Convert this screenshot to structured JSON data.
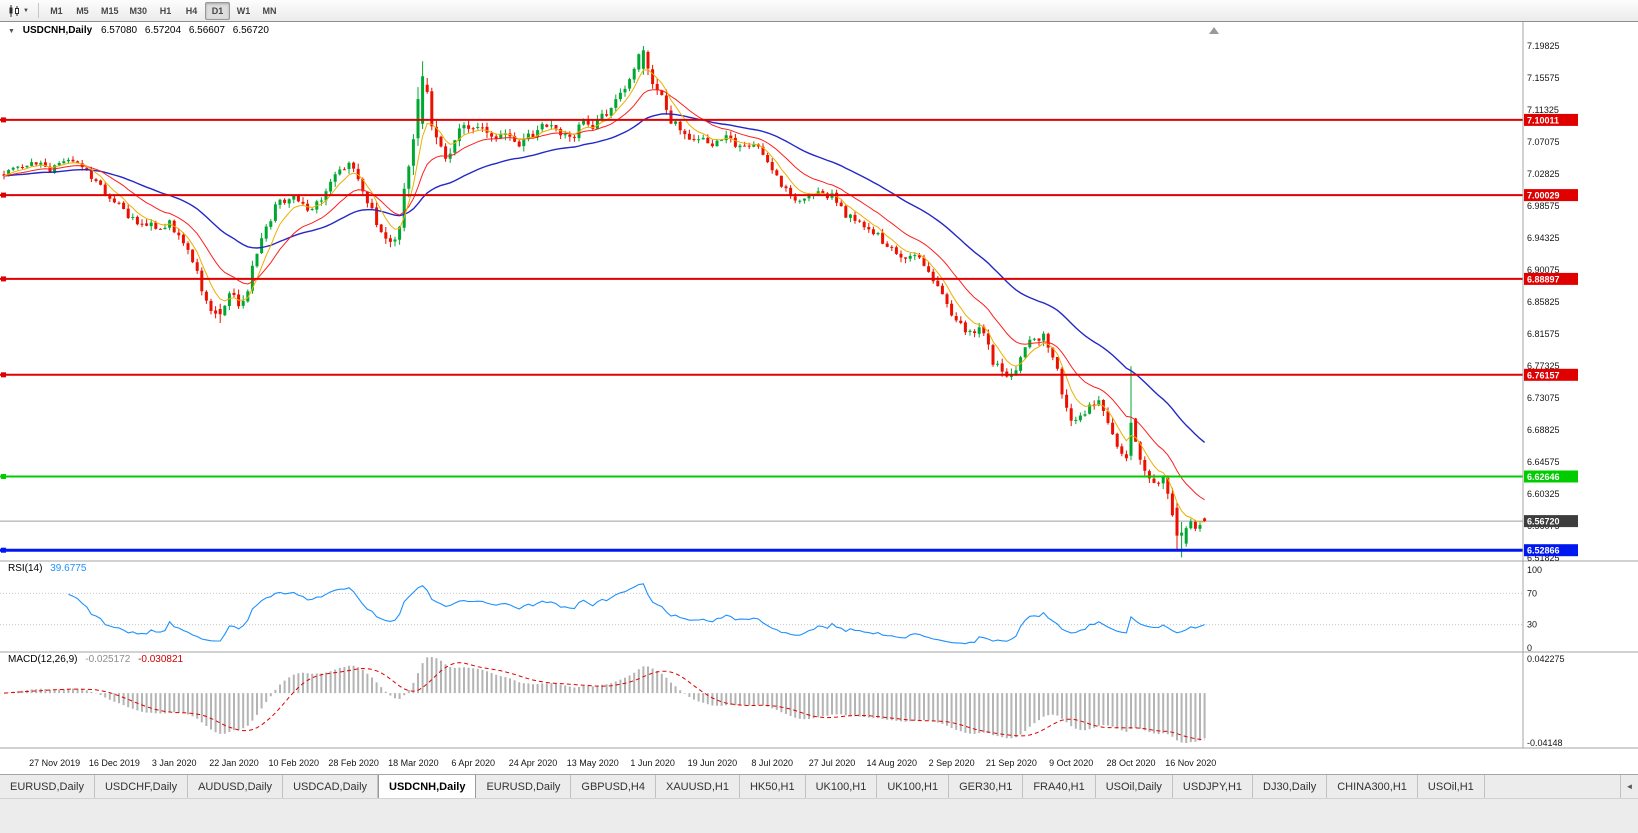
{
  "icons": {
    "quote_marker": "▼",
    "dropdown_caret": "▼",
    "tab_scroll_left": "◄"
  },
  "toolbar": {
    "timeframes": [
      "M1",
      "M5",
      "M15",
      "M30",
      "H1",
      "H4",
      "D1",
      "W1",
      "MN"
    ],
    "active_timeframe": "D1"
  },
  "chart": {
    "symbol_line": {
      "symbol": "USDCNH,Daily",
      "open": "6.57080",
      "high": "6.57204",
      "low": "6.56607",
      "close": "6.56720"
    },
    "price_axis_labels": [
      "7.19825",
      "7.15575",
      "7.11325",
      "7.07075",
      "7.02825",
      "6.98575",
      "6.94325",
      "6.90075",
      "6.85825",
      "6.81575",
      "6.77325",
      "6.73075",
      "6.68825",
      "6.64575",
      "6.60325",
      "6.56075",
      "6.51825"
    ],
    "date_labels": [
      "27 Nov 2019",
      "16 Dec 2019",
      "3 Jan 2020",
      "22 Jan 2020",
      "10 Feb 2020",
      "28 Feb 2020",
      "18 Mar 2020",
      "6 Apr 2020",
      "24 Apr 2020",
      "13 May 2020",
      "1 Jun 2020",
      "19 Jun 2020",
      "8 Jul 2020",
      "27 Jul 2020",
      "14 Aug 2020",
      "2 Sep 2020",
      "21 Sep 2020",
      "9 Oct 2020",
      "28 Oct 2020",
      "16 Nov 2020"
    ]
  },
  "rsi": {
    "title": "RSI(14)",
    "value": "39.6775",
    "axis_labels": [
      "100",
      "70",
      "30",
      "0"
    ]
  },
  "macd": {
    "title": "MACD(12,26,9)",
    "value_main": "-0.025172",
    "value_signal": "-0.030821",
    "axis_labels": [
      "0.042275",
      "-0.04148"
    ]
  },
  "tabs": {
    "active_index": 4,
    "items": [
      "EURUSD,Daily",
      "USDCHF,Daily",
      "AUDUSD,Daily",
      "USDCAD,Daily",
      "USDCNH,Daily",
      "EURUSD,Daily",
      "GBPUSD,H4",
      "XAUUSD,H1",
      "HK50,H1",
      "UK100,H1",
      "UK100,H1",
      "GER30,H1",
      "FRA40,H1",
      "USOil,Daily",
      "USDJPY,H1",
      "DJ30,Daily",
      "CHINA300,H1",
      "USOil,H1"
    ]
  },
  "chart_data": {
    "type": "candlestick",
    "symbol": "USDCNH",
    "timeframe": "Daily",
    "y_axis": {
      "max": 7.19825,
      "min": 6.51825,
      "tick_step": 0.0425
    },
    "visible_bars": 262,
    "first_label_bar_index": 11,
    "label_every_bars": 13,
    "seed": 20201120,
    "candle_colors": {
      "up": "#00a832",
      "down": "#ec1000"
    },
    "price_path_anchors": [
      [
        0,
        7.028
      ],
      [
        6,
        7.044
      ],
      [
        10,
        7.033
      ],
      [
        14,
        7.05
      ],
      [
        18,
        7.028
      ],
      [
        24,
        6.992
      ],
      [
        30,
        6.958
      ],
      [
        36,
        6.962
      ],
      [
        40,
        6.932
      ],
      [
        44,
        6.856
      ],
      [
        47,
        6.842
      ],
      [
        49,
        6.868
      ],
      [
        52,
        6.854
      ],
      [
        55,
        6.925
      ],
      [
        59,
        6.985
      ],
      [
        63,
        7.002
      ],
      [
        67,
        6.976
      ],
      [
        71,
        7.018
      ],
      [
        75,
        7.044
      ],
      [
        79,
        6.995
      ],
      [
        83,
        6.938
      ],
      [
        86,
        6.952
      ],
      [
        88,
        7.05
      ],
      [
        91,
        7.158
      ],
      [
        93,
        7.095
      ],
      [
        96,
        7.052
      ],
      [
        99,
        7.088
      ],
      [
        102,
        7.094
      ],
      [
        106,
        7.072
      ],
      [
        109,
        7.086
      ],
      [
        112,
        7.07
      ],
      [
        115,
        7.082
      ],
      [
        119,
        7.096
      ],
      [
        123,
        7.072
      ],
      [
        126,
        7.1
      ],
      [
        128,
        7.094
      ],
      [
        131,
        7.108
      ],
      [
        134,
        7.134
      ],
      [
        137,
        7.168
      ],
      [
        139,
        7.193
      ],
      [
        141,
        7.152
      ],
      [
        143,
        7.128
      ],
      [
        145,
        7.096
      ],
      [
        148,
        7.082
      ],
      [
        151,
        7.072
      ],
      [
        154,
        7.068
      ],
      [
        157,
        7.076
      ],
      [
        160,
        7.064
      ],
      [
        163,
        7.072
      ],
      [
        167,
        7.034
      ],
      [
        170,
        7.006
      ],
      [
        173,
        6.99
      ],
      [
        176,
        7.004
      ],
      [
        180,
        6.998
      ],
      [
        183,
        6.974
      ],
      [
        186,
        6.964
      ],
      [
        189,
        6.95
      ],
      [
        193,
        6.93
      ],
      [
        196,
        6.916
      ],
      [
        199,
        6.92
      ],
      [
        202,
        6.888
      ],
      [
        206,
        6.842
      ],
      [
        209,
        6.816
      ],
      [
        212,
        6.826
      ],
      [
        215,
        6.78
      ],
      [
        218,
        6.754
      ],
      [
        220,
        6.768
      ],
      [
        223,
        6.806
      ],
      [
        226,
        6.814
      ],
      [
        229,
        6.77
      ],
      [
        231,
        6.712
      ],
      [
        233,
        6.698
      ],
      [
        236,
        6.718
      ],
      [
        238,
        6.728
      ],
      [
        240,
        6.7
      ],
      [
        242,
        6.668
      ],
      [
        244,
        6.652
      ],
      [
        245,
        6.698
      ],
      [
        246,
        6.668
      ],
      [
        248,
        6.64
      ],
      [
        250,
        6.615
      ],
      [
        252,
        6.624
      ],
      [
        253,
        6.598
      ],
      [
        255,
        6.548
      ],
      [
        256,
        6.535
      ],
      [
        257,
        6.558
      ],
      [
        258,
        6.572
      ],
      [
        259,
        6.558
      ],
      [
        260,
        6.566
      ],
      [
        261,
        6.5672
      ]
    ],
    "volatility_anchors": [
      [
        0,
        0.01
      ],
      [
        40,
        0.013
      ],
      [
        50,
        0.016
      ],
      [
        60,
        0.013
      ],
      [
        85,
        0.015
      ],
      [
        90,
        0.034
      ],
      [
        95,
        0.022
      ],
      [
        100,
        0.016
      ],
      [
        135,
        0.013
      ],
      [
        140,
        0.02
      ],
      [
        150,
        0.013
      ],
      [
        170,
        0.01
      ],
      [
        200,
        0.013
      ],
      [
        228,
        0.016
      ],
      [
        240,
        0.014
      ],
      [
        255,
        0.016
      ],
      [
        261,
        0.008
      ]
    ],
    "bar_overrides": [
      {
        "i": 47,
        "o": 6.849,
        "h": 6.856,
        "l": 6.8304,
        "c": 6.842
      },
      {
        "i": 91,
        "o": 7.095,
        "h": 7.178,
        "l": 7.088,
        "c": 7.158
      },
      {
        "i": 139,
        "o": 7.168,
        "h": 7.1982,
        "l": 7.16,
        "c": 7.1925
      },
      {
        "i": 245,
        "o": 6.654,
        "h": 6.7728,
        "l": 6.648,
        "c": 6.698
      },
      {
        "i": 255,
        "o": 6.585,
        "h": 6.592,
        "l": 6.5285,
        "c": 6.548
      },
      {
        "i": 256,
        "o": 6.548,
        "h": 6.566,
        "l": 6.519,
        "c": 6.552
      },
      {
        "i": 261,
        "o": 6.5708,
        "h": 6.57204,
        "l": 6.56607,
        "c": 6.5672
      }
    ],
    "moving_averages": [
      {
        "period": 6,
        "color": "#eeae00",
        "width": 1
      },
      {
        "period": 16,
        "color": "#ff1e1e",
        "width": 1
      },
      {
        "period": 42,
        "color": "#2428c8",
        "width": 1.4
      }
    ],
    "indicators": [
      {
        "name": "RSI",
        "period": 14,
        "color": "#1e90ff",
        "levels": [
          70,
          30
        ],
        "last_value": 39.6775
      },
      {
        "name": "MACD",
        "fast": 12,
        "slow": 26,
        "signal": 9,
        "hist_color": "#b4b4b4",
        "signal_color": "#e00000",
        "last_main": -0.025172,
        "last_signal": -0.030821,
        "axis_max": 0.042275,
        "axis_min": -0.04148
      }
    ],
    "horizontal_levels": [
      {
        "price": 7.10011,
        "label": "7.10011",
        "color": "#e00000",
        "width": 2
      },
      {
        "price": 7.00029,
        "label": "7.00029",
        "color": "#e00000",
        "width": 2
      },
      {
        "price": 6.88897,
        "label": "6.88897",
        "color": "#e00000",
        "width": 2
      },
      {
        "price": 6.76157,
        "label": "6.76157",
        "color": "#e00000",
        "width": 2
      },
      {
        "price": 6.62646,
        "label": "6.62646",
        "color": "#00cc00",
        "width": 2
      },
      {
        "price": 6.52866,
        "label": "6.52866",
        "color": "#0018f0",
        "width": 3
      }
    ],
    "bid": {
      "price": 6.5672,
      "label": "6.56720",
      "line_color": "#9aa0a6",
      "badge_color": "#3d3d3d"
    }
  }
}
